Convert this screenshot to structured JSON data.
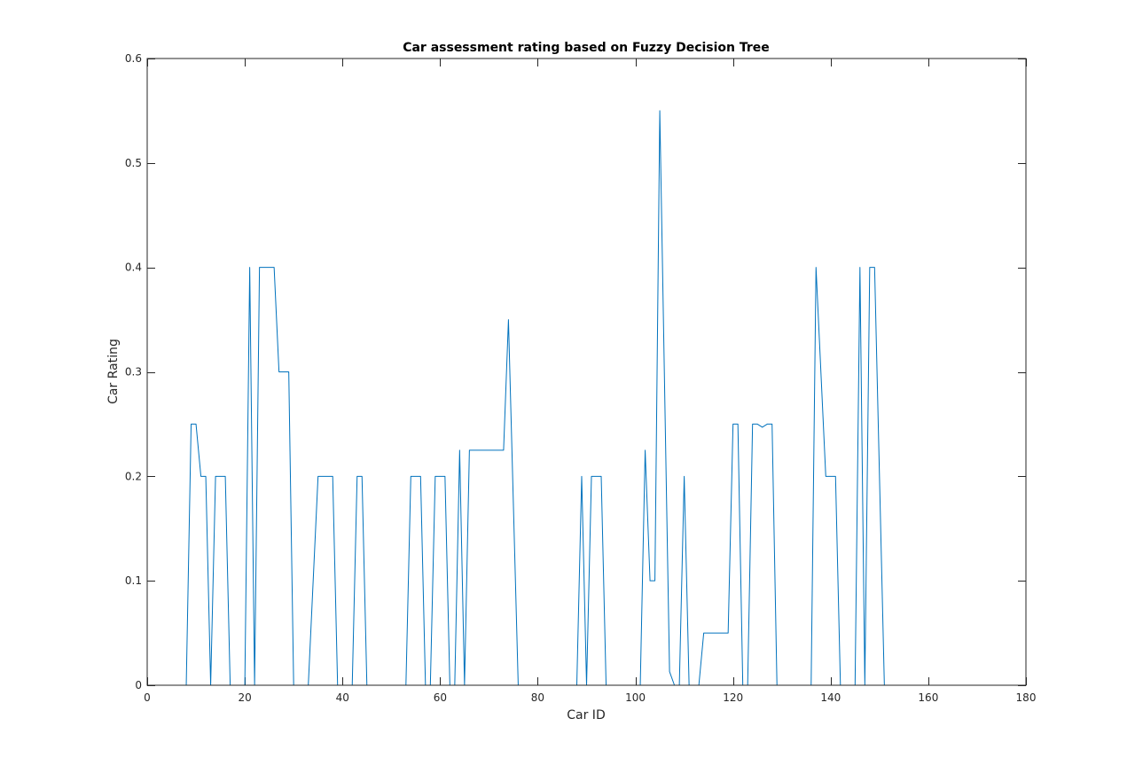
{
  "figure": {
    "background": "#ffffff"
  },
  "chart_data": {
    "type": "line",
    "title": "Car assessment rating based on Fuzzy Decision Tree",
    "xlabel": "Car ID",
    "ylabel": "Car Rating",
    "xlim": [
      0,
      180
    ],
    "ylim": [
      0,
      0.6
    ],
    "xticks": [
      0,
      20,
      40,
      60,
      80,
      100,
      120,
      140,
      160,
      180
    ],
    "yticks": [
      0,
      0.1,
      0.2,
      0.3,
      0.4,
      0.5,
      0.6
    ],
    "xtick_labels": [
      "0",
      "20",
      "40",
      "60",
      "80",
      "100",
      "120",
      "140",
      "160",
      "180"
    ],
    "ytick_labels": [
      "0",
      "0.1",
      "0.2",
      "0.3",
      "0.4",
      "0.5",
      "0.6"
    ],
    "grid": false,
    "box": true,
    "series": [
      {
        "name": "rating",
        "color": "#0072bd",
        "points": [
          [
            0,
            0
          ],
          [
            8,
            0
          ],
          [
            9,
            0.25
          ],
          [
            10,
            0.25
          ],
          [
            11,
            0.2
          ],
          [
            12,
            0.2
          ],
          [
            13,
            0
          ],
          [
            14,
            0.2
          ],
          [
            16,
            0.2
          ],
          [
            17,
            0
          ],
          [
            20,
            0
          ],
          [
            21,
            0.4
          ],
          [
            22,
            0
          ],
          [
            23,
            0.4
          ],
          [
            26,
            0.4
          ],
          [
            27,
            0.3
          ],
          [
            29,
            0.3
          ],
          [
            30,
            0
          ],
          [
            33,
            0
          ],
          [
            35,
            0.2
          ],
          [
            38,
            0.2
          ],
          [
            39,
            0
          ],
          [
            42,
            0
          ],
          [
            43,
            0.2
          ],
          [
            44,
            0.2
          ],
          [
            45,
            0
          ],
          [
            53,
            0
          ],
          [
            54,
            0.2
          ],
          [
            56,
            0.2
          ],
          [
            57,
            0
          ],
          [
            58,
            0
          ],
          [
            59,
            0.2
          ],
          [
            61,
            0.2
          ],
          [
            62,
            0
          ],
          [
            63,
            0
          ],
          [
            64,
            0.225
          ],
          [
            65,
            0
          ],
          [
            66,
            0.225
          ],
          [
            73,
            0.225
          ],
          [
            74,
            0.35
          ],
          [
            76,
            0
          ],
          [
            88,
            0
          ],
          [
            89,
            0.2
          ],
          [
            90,
            0
          ],
          [
            91,
            0.2
          ],
          [
            93,
            0.2
          ],
          [
            94,
            0
          ],
          [
            101,
            0
          ],
          [
            102,
            0.225
          ],
          [
            103,
            0.1
          ],
          [
            104,
            0.1
          ],
          [
            105,
            0.55
          ],
          [
            107,
            0.013
          ],
          [
            108,
            0
          ],
          [
            109,
            0
          ],
          [
            110,
            0.2
          ],
          [
            111,
            0
          ],
          [
            113,
            0
          ],
          [
            114,
            0.05
          ],
          [
            119,
            0.05
          ],
          [
            120,
            0.25
          ],
          [
            121,
            0.25
          ],
          [
            122,
            0
          ],
          [
            123,
            0
          ],
          [
            124,
            0.25
          ],
          [
            125,
            0.25
          ],
          [
            126,
            0.247
          ],
          [
            127,
            0.25
          ],
          [
            128,
            0.25
          ],
          [
            129,
            0
          ],
          [
            136,
            0
          ],
          [
            137,
            0.4
          ],
          [
            139,
            0.2
          ],
          [
            141,
            0.2
          ],
          [
            142,
            0
          ],
          [
            145,
            0
          ],
          [
            146,
            0.4
          ],
          [
            147,
            0
          ],
          [
            148,
            0.4
          ],
          [
            149,
            0.4
          ],
          [
            151,
            0
          ],
          [
            170,
            0
          ]
        ]
      }
    ]
  }
}
